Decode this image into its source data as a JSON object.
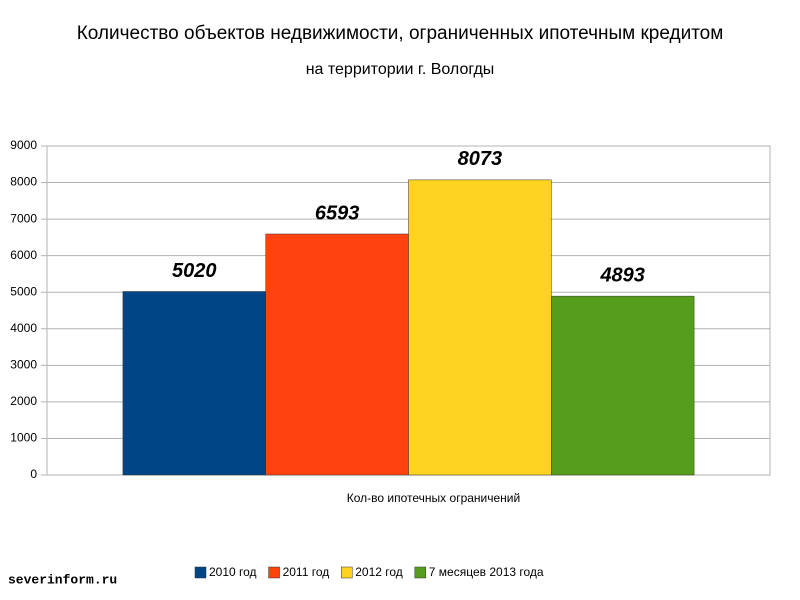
{
  "chart_data": {
    "type": "bar",
    "title": "Количество объектов недвижимости, ограниченных ипотечным кредитом",
    "subtitle": "на территории г. Вологды",
    "categories": [
      "Кол-во ипотечных ограничений"
    ],
    "series": [
      {
        "name": "2010 год",
        "color": "#004586",
        "values": [
          5020
        ]
      },
      {
        "name": "2011 год",
        "color": "#ff420e",
        "values": [
          6593
        ]
      },
      {
        "name": "2012 год",
        "color": "#ffd320",
        "values": [
          8073
        ]
      },
      {
        "name": "7 месяцев 2013 года",
        "color": "#579d1c",
        "values": [
          4893
        ]
      }
    ],
    "ylim": [
      0,
      9000
    ],
    "yticks": [
      0,
      1000,
      2000,
      3000,
      4000,
      5000,
      6000,
      7000,
      8000,
      9000
    ],
    "grid": true,
    "legend": "bottom",
    "watermark": "severinform.ru"
  }
}
